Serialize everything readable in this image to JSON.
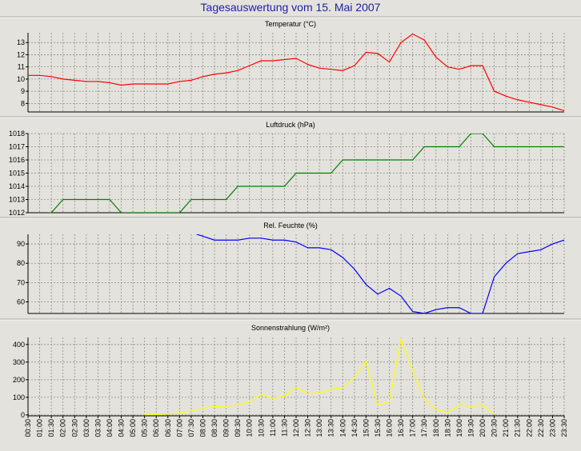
{
  "title": "Tagesauswertung vom 15. Mai 2007",
  "x_labels": [
    "00:30",
    "01:00",
    "01:30",
    "02:00",
    "02:30",
    "03:00",
    "03:30",
    "04:00",
    "04:30",
    "05:00",
    "05:30",
    "06:00",
    "06:30",
    "07:00",
    "07:30",
    "08:00",
    "08:30",
    "09:00",
    "09:30",
    "10:00",
    "10:30",
    "11:00",
    "11:30",
    "12:00",
    "12:30",
    "13:00",
    "13:30",
    "14:00",
    "14:30",
    "15:00",
    "15:30",
    "16:00",
    "16:30",
    "17:00",
    "17:30",
    "18:00",
    "18:30",
    "19:00",
    "19:30",
    "20:00",
    "20:30",
    "21:00",
    "21:30",
    "22:00",
    "22:30",
    "23:00",
    "23:30"
  ],
  "chart_data": [
    {
      "type": "line",
      "title": "Temperatur (°C)",
      "color": "#ff0000",
      "ylim": [
        7.3,
        13.8
      ],
      "yticks": [
        8,
        9,
        10,
        11,
        12,
        13
      ],
      "grid": true,
      "series": [
        {
          "values": [
            10.3,
            10.3,
            10.2,
            10.0,
            9.9,
            9.8,
            9.8,
            9.7,
            9.5,
            9.6,
            9.6,
            9.6,
            9.6,
            9.8,
            9.9,
            10.2,
            10.4,
            10.5,
            10.7,
            11.1,
            11.5,
            11.5,
            11.6,
            11.7,
            11.2,
            10.9,
            10.8,
            10.7,
            11.1,
            12.2,
            12.1,
            11.4,
            13.0,
            13.7,
            13.2,
            11.8,
            11.0,
            10.8,
            11.1,
            11.1,
            9.0,
            8.6,
            8.3,
            8.1,
            7.9,
            7.7,
            7.4
          ]
        }
      ]
    },
    {
      "type": "line",
      "title": "Luftdruck (hPa)",
      "color": "#008000",
      "ylim": [
        1012,
        1018
      ],
      "yticks": [
        1012,
        1013,
        1014,
        1015,
        1016,
        1017,
        1018
      ],
      "grid": true,
      "series": [
        {
          "values": [
            1011.9,
            1011.9,
            1012,
            1013,
            1013,
            1013,
            1013,
            1013,
            1012,
            1012,
            1012,
            1012,
            1012,
            1012,
            1013,
            1013,
            1013,
            1013,
            1014,
            1014,
            1014,
            1014,
            1014,
            1015,
            1015,
            1015,
            1015,
            1016,
            1016,
            1016,
            1016,
            1016,
            1016,
            1016,
            1017,
            1017,
            1017,
            1017,
            1018,
            1018,
            1017,
            1017,
            1017,
            1017,
            1017,
            1017,
            1017
          ]
        }
      ]
    },
    {
      "type": "line",
      "title": "Rel. Feuchte (%)",
      "color": "#0000ff",
      "ylim": [
        54,
        95
      ],
      "yticks": [
        60,
        70,
        80,
        90
      ],
      "grid": true,
      "series": [
        {
          "values": [
            null,
            null,
            null,
            null,
            null,
            null,
            null,
            null,
            null,
            null,
            null,
            null,
            null,
            null,
            96,
            94,
            92,
            92,
            92,
            93,
            93,
            92,
            92,
            91,
            88,
            88,
            87,
            83,
            77,
            69,
            64,
            67,
            63,
            55,
            54,
            56,
            57,
            57,
            54,
            54,
            73,
            80,
            85,
            86,
            87,
            90,
            92
          ]
        }
      ]
    },
    {
      "type": "line",
      "title": "Sonnenstrahlung (W/m²)",
      "color": "#ffff00",
      "ylim": [
        -5,
        440
      ],
      "yticks": [
        0,
        100,
        200,
        300,
        400
      ],
      "grid": true,
      "series": [
        {
          "values": [
            null,
            null,
            null,
            null,
            null,
            null,
            null,
            null,
            null,
            null,
            0,
            2,
            5,
            12,
            22,
            38,
            48,
            50,
            55,
            75,
            115,
            95,
            105,
            155,
            120,
            125,
            145,
            155,
            210,
            305,
            55,
            75,
            430,
            250,
            90,
            30,
            15,
            55,
            50,
            55,
            5,
            null,
            null,
            null,
            null,
            null,
            null
          ]
        }
      ]
    }
  ]
}
